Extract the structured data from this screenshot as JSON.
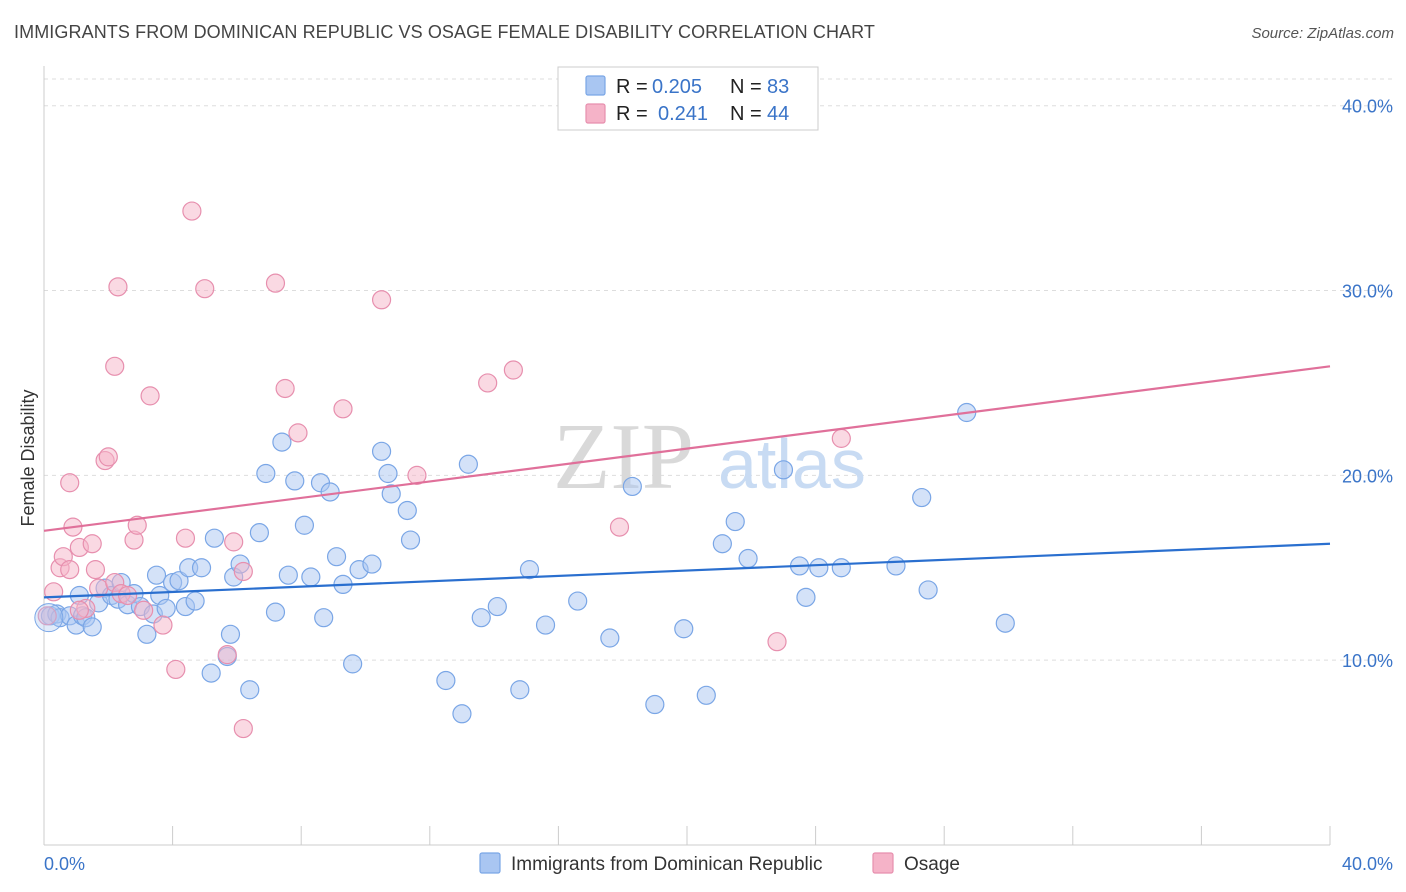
{
  "header": {
    "title": "IMMIGRANTS FROM DOMINICAN REPUBLIC VS OSAGE FEMALE DISABILITY CORRELATION CHART",
    "source": "Source: ZipAtlas.com"
  },
  "watermark": {
    "part1": "ZIP",
    "part2": "atlas"
  },
  "legend": {
    "rows": [
      {
        "r_label": "R =",
        "r_value": "0.205",
        "n_label": "N =",
        "n_value": "83",
        "color": "#a9c6f2"
      },
      {
        "r_label": "R =",
        "r_value": "0.241",
        "n_label": "N =",
        "n_value": "44",
        "color": "#f5b3c8"
      }
    ]
  },
  "bottom_legend": {
    "items": [
      {
        "label": "Immigrants from Dominican Republic",
        "color": "#a9c6f2"
      },
      {
        "label": "Osage",
        "color": "#f5b3c8"
      }
    ]
  },
  "chart_data": {
    "type": "scatter",
    "title": "IMMIGRANTS FROM DOMINICAN REPUBLIC VS OSAGE FEMALE DISABILITY CORRELATION CHART",
    "xlabel": "",
    "ylabel": "Female Disability",
    "xlim": [
      0,
      40
    ],
    "ylim": [
      0,
      41.5
    ],
    "x_tick_labels": [
      "0.0%",
      "40.0%"
    ],
    "y_ticks": [
      10,
      20,
      30,
      40
    ],
    "y_tick_labels": [
      "10.0%",
      "20.0%",
      "30.0%",
      "40.0%"
    ],
    "grid": "horizontal dashed",
    "legend_position": "top-center",
    "series": [
      {
        "name": "Immigrants from Dominican Republic",
        "color": "#a9c6f2",
        "stroke": "#7aa6e6",
        "trend_color": "#2a6fcf",
        "trend": {
          "x": [
            0,
            40
          ],
          "y": [
            13.4,
            16.3
          ]
        },
        "points": [
          [
            0.2,
            12.4
          ],
          [
            0.4,
            12.5
          ],
          [
            0.5,
            12.3
          ],
          [
            0.8,
            12.4
          ],
          [
            1.0,
            11.9
          ],
          [
            1.1,
            13.5
          ],
          [
            1.2,
            12.4
          ],
          [
            1.3,
            12.3
          ],
          [
            1.5,
            11.8
          ],
          [
            1.7,
            13.1
          ],
          [
            1.9,
            13.9
          ],
          [
            2.1,
            13.5
          ],
          [
            2.3,
            13.3
          ],
          [
            2.4,
            14.2
          ],
          [
            2.6,
            13.0
          ],
          [
            2.8,
            13.6
          ],
          [
            3.0,
            12.9
          ],
          [
            3.2,
            11.4
          ],
          [
            3.4,
            12.5
          ],
          [
            3.5,
            14.6
          ],
          [
            3.6,
            13.5
          ],
          [
            3.8,
            12.8
          ],
          [
            4.0,
            14.2
          ],
          [
            4.2,
            14.3
          ],
          [
            4.4,
            12.9
          ],
          [
            4.5,
            15.0
          ],
          [
            4.7,
            13.2
          ],
          [
            4.9,
            15.0
          ],
          [
            5.2,
            9.3
          ],
          [
            5.3,
            16.6
          ],
          [
            5.7,
            10.2
          ],
          [
            5.8,
            11.4
          ],
          [
            5.9,
            14.5
          ],
          [
            6.1,
            15.2
          ],
          [
            6.4,
            8.4
          ],
          [
            6.7,
            16.9
          ],
          [
            6.9,
            20.1
          ],
          [
            7.2,
            12.6
          ],
          [
            7.4,
            21.8
          ],
          [
            7.6,
            14.6
          ],
          [
            7.8,
            19.7
          ],
          [
            8.1,
            17.3
          ],
          [
            8.3,
            14.5
          ],
          [
            8.6,
            19.6
          ],
          [
            8.7,
            12.3
          ],
          [
            8.9,
            19.1
          ],
          [
            9.1,
            15.6
          ],
          [
            9.3,
            14.1
          ],
          [
            9.6,
            9.8
          ],
          [
            9.8,
            14.9
          ],
          [
            10.2,
            15.2
          ],
          [
            10.5,
            21.3
          ],
          [
            10.7,
            20.1
          ],
          [
            10.8,
            19.0
          ],
          [
            11.3,
            18.1
          ],
          [
            11.4,
            16.5
          ],
          [
            12.5,
            8.9
          ],
          [
            13.0,
            7.1
          ],
          [
            13.2,
            20.6
          ],
          [
            13.6,
            12.3
          ],
          [
            14.1,
            12.9
          ],
          [
            14.8,
            8.4
          ],
          [
            15.1,
            14.9
          ],
          [
            15.6,
            11.9
          ],
          [
            16.6,
            13.2
          ],
          [
            17.6,
            11.2
          ],
          [
            18.3,
            19.4
          ],
          [
            19.0,
            7.6
          ],
          [
            19.9,
            11.7
          ],
          [
            20.6,
            8.1
          ],
          [
            21.1,
            16.3
          ],
          [
            21.5,
            17.5
          ],
          [
            21.9,
            15.5
          ],
          [
            23.0,
            20.3
          ],
          [
            23.5,
            15.1
          ],
          [
            23.7,
            13.4
          ],
          [
            24.1,
            15.0
          ],
          [
            24.8,
            15.0
          ],
          [
            26.5,
            15.1
          ],
          [
            27.3,
            18.8
          ],
          [
            27.5,
            13.8
          ],
          [
            28.7,
            23.4
          ],
          [
            29.9,
            12.0
          ]
        ]
      },
      {
        "name": "Osage",
        "color": "#f5b3c8",
        "stroke": "#e78fae",
        "trend_color": "#e0709a",
        "trend": {
          "x": [
            0,
            40
          ],
          "y": [
            17.0,
            25.9
          ]
        },
        "points": [
          [
            0.1,
            12.4
          ],
          [
            0.3,
            13.7
          ],
          [
            0.5,
            15.0
          ],
          [
            0.6,
            15.6
          ],
          [
            0.8,
            14.9
          ],
          [
            0.9,
            17.2
          ],
          [
            1.1,
            16.1
          ],
          [
            1.3,
            12.8
          ],
          [
            1.5,
            16.3
          ],
          [
            1.6,
            14.9
          ],
          [
            1.7,
            13.9
          ],
          [
            1.9,
            20.8
          ],
          [
            2.0,
            21.0
          ],
          [
            2.2,
            14.2
          ],
          [
            2.3,
            30.2
          ],
          [
            2.4,
            13.6
          ],
          [
            2.6,
            13.5
          ],
          [
            2.8,
            16.5
          ],
          [
            2.9,
            17.3
          ],
          [
            3.1,
            12.7
          ],
          [
            3.3,
            24.3
          ],
          [
            3.7,
            11.9
          ],
          [
            4.1,
            9.5
          ],
          [
            4.4,
            16.6
          ],
          [
            4.6,
            34.3
          ],
          [
            5.0,
            30.1
          ],
          [
            5.7,
            10.3
          ],
          [
            5.9,
            16.4
          ],
          [
            6.2,
            14.8
          ],
          [
            7.2,
            30.4
          ],
          [
            7.5,
            24.7
          ],
          [
            7.9,
            22.3
          ],
          [
            9.3,
            23.6
          ],
          [
            10.5,
            29.5
          ],
          [
            11.6,
            20.0
          ],
          [
            13.8,
            25.0
          ],
          [
            14.6,
            25.7
          ],
          [
            17.9,
            17.2
          ],
          [
            22.8,
            11.0
          ],
          [
            24.8,
            22.0
          ],
          [
            0.8,
            19.6
          ],
          [
            2.2,
            25.9
          ],
          [
            1.1,
            12.7
          ],
          [
            6.2,
            6.3
          ]
        ]
      }
    ]
  }
}
